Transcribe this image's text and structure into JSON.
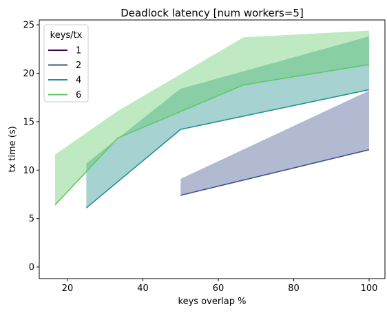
{
  "chart_data": {
    "type": "line",
    "title": "Deadlock latency [num workers=5]",
    "xlabel": "keys overlap %",
    "ylabel": "tx time (s)",
    "xlim": [
      12.5,
      104.2
    ],
    "ylim": [
      -1.2,
      25.5
    ],
    "xticks": [
      20,
      40,
      60,
      80,
      100
    ],
    "yticks": [
      0,
      5,
      10,
      15,
      20,
      25
    ],
    "grid": false,
    "legend": {
      "title": "keys/tx",
      "placement": "top-left"
    },
    "series": [
      {
        "name": "1",
        "color": "#440154",
        "x": [],
        "y": [],
        "band_low": [],
        "band_high": []
      },
      {
        "name": "2",
        "color": "#3b528b",
        "x": [
          50,
          100
        ],
        "y": [
          7.4,
          12.1
        ],
        "band_low": [
          7.4,
          12.1
        ],
        "band_high": [
          9.1,
          18.2
        ]
      },
      {
        "name": "4",
        "color": "#21918c",
        "x": [
          25,
          50,
          100
        ],
        "y": [
          6.1,
          14.2,
          18.3
        ],
        "band_low": [
          6.1,
          14.2,
          18.3
        ],
        "band_high": [
          10.7,
          18.4,
          23.8
        ]
      },
      {
        "name": "6",
        "color": "#5ec962",
        "x": [
          16.7,
          33.3,
          66.7,
          100
        ],
        "y": [
          6.4,
          13.3,
          18.8,
          20.9
        ],
        "band_low": [
          6.4,
          13.3,
          18.8,
          20.9
        ],
        "band_high": [
          11.6,
          16.1,
          23.7,
          24.4
        ]
      }
    ]
  }
}
